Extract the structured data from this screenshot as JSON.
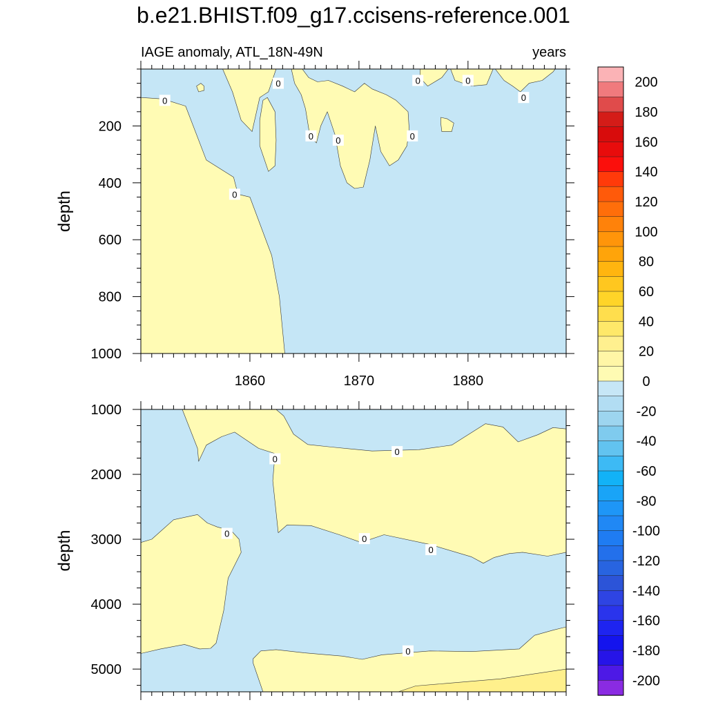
{
  "chart_data": {
    "type": "contour",
    "title": "b.e21.BHIST.f09_g17.ccisens-reference.001",
    "subtitle_left": "IAGE anomaly, ATL_18N-49N",
    "subtitle_right": "years",
    "xlim": [
      1850,
      1889
    ],
    "x_ticks": [
      1860,
      1870,
      1880
    ],
    "panels": [
      {
        "ylabel": "depth",
        "ylim": [
          0,
          1000
        ],
        "y_ticks": [
          200,
          400,
          600,
          800,
          1000
        ],
        "contour_label": "0",
        "contour_label_positions": [
          [
            1852.2,
            110
          ],
          [
            1858.6,
            440
          ],
          [
            1862.6,
            50
          ],
          [
            1865.6,
            235
          ],
          [
            1868.1,
            250
          ],
          [
            1874.9,
            235
          ],
          [
            1875.4,
            40
          ],
          [
            1880.0,
            40
          ],
          [
            1885.1,
            100
          ]
        ],
        "positive_regions": [
          [
            [
              1850,
              0
            ],
            [
              1850,
              100
            ],
            [
              1852,
              105
            ],
            [
              1854.1,
              130
            ],
            [
              1856,
              320
            ],
            [
              1858.5,
              380
            ],
            [
              1858.9,
              440
            ],
            [
              1860,
              450
            ],
            [
              1862,
              655
            ],
            [
              1862.7,
              800
            ],
            [
              1863.2,
              1000
            ],
            [
              1850,
              1000
            ]
          ],
          [
            [
              1850,
              0
            ],
            [
              1857.5,
              0
            ],
            [
              1858.4,
              80
            ],
            [
              1859.2,
              180
            ],
            [
              1860.2,
              220
            ],
            [
              1860.9,
              100
            ],
            [
              1861.7,
              80
            ],
            [
              1862.4,
              0
            ]
          ],
          [
            [
              1863.8,
              0
            ],
            [
              1864.1,
              50
            ],
            [
              1864.7,
              90
            ],
            [
              1865.1,
              140
            ],
            [
              1865.5,
              235
            ],
            [
              1866.1,
              260
            ],
            [
              1866.5,
              200
            ],
            [
              1867.1,
              150
            ],
            [
              1867.8,
              230
            ],
            [
              1868.3,
              340
            ],
            [
              1868.9,
              400
            ],
            [
              1869.6,
              420
            ],
            [
              1870.4,
              415
            ],
            [
              1871,
              320
            ],
            [
              1871.5,
              200
            ],
            [
              1872,
              290
            ],
            [
              1872.8,
              340
            ],
            [
              1873.6,
              320
            ],
            [
              1874.4,
              270
            ],
            [
              1874.6,
              210
            ],
            [
              1874.5,
              150
            ],
            [
              1873.4,
              110
            ],
            [
              1872.5,
              90
            ],
            [
              1871.2,
              70
            ],
            [
              1870.5,
              50
            ],
            [
              1869.6,
              80
            ],
            [
              1868.5,
              60
            ],
            [
              1867.2,
              40
            ],
            [
              1866.2,
              45
            ],
            [
              1865.4,
              30
            ],
            [
              1864.8,
              0
            ]
          ],
          [
            [
              1875.6,
              0
            ],
            [
              1875.6,
              30
            ],
            [
              1876.3,
              60
            ],
            [
              1877.6,
              30
            ],
            [
              1878.2,
              0
            ]
          ],
          [
            [
              1878.4,
              0
            ],
            [
              1878.8,
              40
            ],
            [
              1880.3,
              60
            ],
            [
              1881.7,
              55
            ],
            [
              1882.3,
              0
            ]
          ],
          [
            [
              1882.5,
              0
            ],
            [
              1883.3,
              40
            ],
            [
              1884.1,
              60
            ],
            [
              1884.8,
              80
            ],
            [
              1885.6,
              50
            ],
            [
              1886.8,
              40
            ],
            [
              1887.8,
              10
            ],
            [
              1888,
              0
            ]
          ],
          [
            [
              1861.6,
              100
            ],
            [
              1862.3,
              150
            ],
            [
              1862.4,
              250
            ],
            [
              1862.3,
              340
            ],
            [
              1861.7,
              360
            ],
            [
              1860.9,
              270
            ],
            [
              1860.9,
              180
            ],
            [
              1861.2,
              110
            ]
          ],
          [
            [
              1877.5,
              170
            ],
            [
              1878.1,
              175
            ],
            [
              1878.7,
              190
            ],
            [
              1878.5,
              220
            ],
            [
              1877.6,
              220
            ],
            [
              1877.5,
              190
            ]
          ],
          [
            [
              1855.1,
              60
            ],
            [
              1855.5,
              50
            ],
            [
              1855.8,
              60
            ],
            [
              1855.8,
              75
            ],
            [
              1855.3,
              80
            ]
          ]
        ]
      },
      {
        "ylabel": "depth",
        "ylim": [
          1000,
          5350
        ],
        "y_ticks": [
          1000,
          2000,
          3000,
          4000,
          5000
        ],
        "contour_label": "0",
        "contour_label_positions": [
          [
            1862.3,
            1760
          ],
          [
            1857.9,
            2910
          ],
          [
            1870.5,
            2990
          ],
          [
            1873.5,
            1650
          ],
          [
            1876.6,
            3160
          ],
          [
            1874.5,
            4720
          ]
        ],
        "positive_regions": [
          [
            [
              1853.8,
              1000
            ],
            [
              1855.2,
              1600
            ],
            [
              1855.3,
              1800
            ],
            [
              1856.0,
              1550
            ],
            [
              1857.4,
              1420
            ],
            [
              1858.6,
              1350
            ],
            [
              1860.8,
              1600
            ],
            [
              1862.3,
              1680
            ],
            [
              1862.1,
              2100
            ],
            [
              1862.6,
              2900
            ],
            [
              1863.4,
              2780
            ],
            [
              1865.6,
              2790
            ],
            [
              1868.2,
              2930
            ],
            [
              1870.2,
              3050
            ],
            [
              1872.3,
              2930
            ],
            [
              1876.5,
              3080
            ],
            [
              1880.3,
              3270
            ],
            [
              1881.4,
              3370
            ],
            [
              1882.4,
              3280
            ],
            [
              1883.8,
              3220
            ],
            [
              1885,
              3200
            ],
            [
              1887.3,
              3260
            ],
            [
              1889,
              3200
            ],
            [
              1889,
              1300
            ],
            [
              1887.8,
              1280
            ],
            [
              1886.4,
              1390
            ],
            [
              1884.6,
              1500
            ],
            [
              1883.2,
              1270
            ],
            [
              1881.6,
              1220
            ],
            [
              1880.1,
              1380
            ],
            [
              1878.5,
              1550
            ],
            [
              1875.5,
              1620
            ],
            [
              1871.2,
              1640
            ],
            [
              1867.5,
              1580
            ],
            [
              1865.3,
              1540
            ],
            [
              1864,
              1380
            ],
            [
              1863.1,
              1100
            ],
            [
              1862.4,
              1000
            ]
          ],
          [
            [
              1850,
              3050
            ],
            [
              1851,
              3000
            ],
            [
              1853,
              2700
            ],
            [
              1855.2,
              2620
            ],
            [
              1856.1,
              2750
            ],
            [
              1857,
              2810
            ],
            [
              1858.3,
              2870
            ],
            [
              1859,
              3000
            ],
            [
              1859.2,
              3200
            ],
            [
              1858,
              3600
            ],
            [
              1857.6,
              4100
            ],
            [
              1856.9,
              4600
            ],
            [
              1856.4,
              4680
            ],
            [
              1855.4,
              4690
            ],
            [
              1854,
              4620
            ],
            [
              1851.8,
              4690
            ],
            [
              1850,
              4760
            ]
          ],
          [
            [
              1861.2,
              5350
            ],
            [
              1860.3,
              4910
            ],
            [
              1860.3,
              4840
            ],
            [
              1861,
              4720
            ],
            [
              1862.4,
              4700
            ],
            [
              1865,
              4750
            ],
            [
              1868.5,
              4800
            ],
            [
              1870.3,
              4850
            ],
            [
              1872.1,
              4780
            ],
            [
              1876.5,
              4720
            ],
            [
              1880.3,
              4730
            ],
            [
              1884.7,
              4690
            ],
            [
              1886.1,
              4480
            ],
            [
              1887.8,
              4400
            ],
            [
              1889,
              4350
            ],
            [
              1889,
              5350
            ]
          ]
        ],
        "strong_positive_regions": [
          [
            [
              1873.6,
              5350
            ],
            [
              1875.2,
              5260
            ],
            [
              1878,
              5220
            ],
            [
              1883,
              5150
            ],
            [
              1889,
              5000
            ],
            [
              1889,
              5350
            ]
          ]
        ]
      }
    ],
    "colorbar": {
      "labels": [
        "200",
        "180",
        "160",
        "140",
        "120",
        "100",
        "80",
        "60",
        "40",
        "20",
        "0",
        "-20",
        "-40",
        "-60",
        "-80",
        "-100",
        "-120",
        "-140",
        "-160",
        "-180",
        "-200"
      ],
      "colors": [
        "#fbb3b6",
        "#f07a7d",
        "#e04b4b",
        "#d41c18",
        "#d80c0c",
        "#e80c0c",
        "#fb0f0c",
        "#ff3a0a",
        "#ff5a0a",
        "#ff6e0a",
        "#ff820a",
        "#ff950a",
        "#ffa40a",
        "#ffb50f",
        "#ffc71f",
        "#ffd428",
        "#ffde4d",
        "#fee869",
        "#fff08f",
        "#fff6a6",
        "#fefbb3",
        "#c6e6f6",
        "#b2ddf3",
        "#9dd5ef",
        "#7fcbee",
        "#62c3f0",
        "#3dbaf5",
        "#12b2f7",
        "#19a4f7",
        "#1e96f7",
        "#2088f5",
        "#1f7cf2",
        "#2370eb",
        "#2864e0",
        "#2c54d8",
        "#2e44e3",
        "#2a34ec",
        "#1e24f0",
        "#1414ee",
        "#2614e8",
        "#4d19e6",
        "#8a2be2"
      ],
      "zero_positive_fill": "#fffbb4",
      "zero_negative_fill": "#c5e6f6",
      "strong_positive_fill": "#fff08c"
    }
  }
}
